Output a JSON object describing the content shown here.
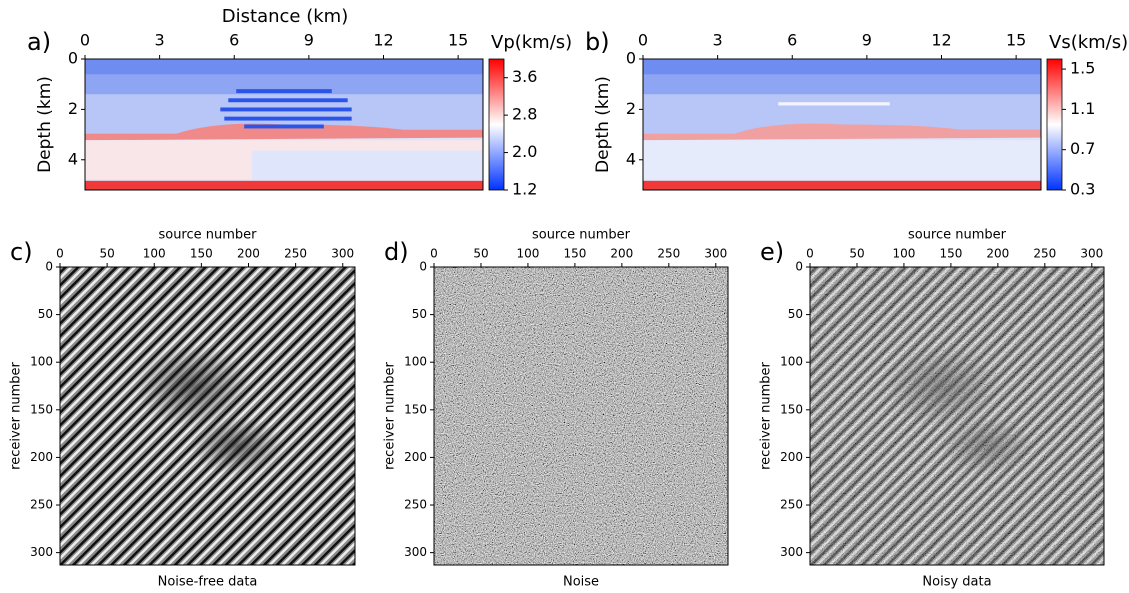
{
  "chart_data": [
    {
      "type": "heatmap",
      "panel_label": "a)",
      "xlabel": "Distance (km)",
      "ylabel": "Depth (km)",
      "xlim": [
        0,
        16
      ],
      "xticks": [
        0,
        3,
        6,
        9,
        12,
        15
      ],
      "ylim": [
        0,
        5.2
      ],
      "yticks": [
        0,
        2,
        4
      ],
      "colorbar": {
        "label": "Vp(km/s)",
        "lim": [
          1.2,
          4.0
        ],
        "ticks": [
          1.2,
          {
            "value": 2,
            "label": "2.0"
          },
          2.8,
          3.6
        ],
        "colors": [
          "#0033ff",
          "#ffffff",
          "#ff0000"
        ]
      }
    },
    {
      "type": "heatmap",
      "panel_label": "b)",
      "ylabel": "Depth (km)",
      "xlim": [
        0,
        16
      ],
      "xticks": [
        0,
        3,
        6,
        9,
        12,
        15
      ],
      "ylim": [
        0,
        5.2
      ],
      "yticks": [
        0,
        2,
        4
      ],
      "colorbar": {
        "label": "Vs(km/s)",
        "lim": [
          0.3,
          1.6
        ],
        "ticks": [
          0.3,
          0.7,
          1.1,
          1.5
        ],
        "colors": [
          "#0033ff",
          "#ffffff",
          "#ff0000"
        ]
      }
    },
    {
      "type": "heatmap",
      "panel_label": "c)",
      "xlabel": "source number",
      "ylabel": "receiver number",
      "caption": "Noise-free data",
      "xlim": [
        0,
        313
      ],
      "xticks": [
        0,
        50,
        100,
        150,
        200,
        250,
        300
      ],
      "ylim": [
        0,
        313
      ],
      "yticks": [
        0,
        50,
        100,
        150,
        200,
        250,
        300
      ],
      "colormap": "gray"
    },
    {
      "type": "heatmap",
      "panel_label": "d)",
      "xlabel": "source number",
      "ylabel": "receiver number",
      "caption": "Noise",
      "xlim": [
        0,
        313
      ],
      "xticks": [
        0,
        50,
        100,
        150,
        200,
        250,
        300
      ],
      "ylim": [
        0,
        313
      ],
      "yticks": [
        0,
        50,
        100,
        150,
        200,
        250,
        300
      ],
      "colormap": "gray"
    },
    {
      "type": "heatmap",
      "panel_label": "e)",
      "xlabel": "source number",
      "ylabel": "receiver number",
      "caption": "Noisy data",
      "xlim": [
        0,
        313
      ],
      "xticks": [
        0,
        50,
        100,
        150,
        200,
        250,
        300
      ],
      "ylim": [
        0,
        313
      ],
      "yticks": [
        0,
        50,
        100,
        150,
        200,
        250,
        300
      ],
      "colormap": "gray"
    }
  ]
}
